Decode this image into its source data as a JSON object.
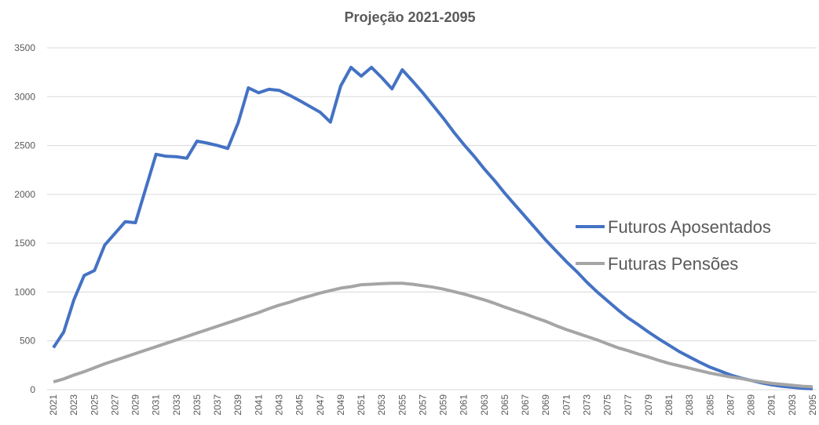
{
  "chart_data": {
    "type": "line",
    "title": "Projeção 2021-2095",
    "categories": [
      "2021",
      null,
      "2023",
      null,
      "2025",
      null,
      "2027",
      null,
      "2029",
      null,
      "2031",
      null,
      "2033",
      null,
      "2035",
      null,
      "2037",
      null,
      "2039",
      null,
      "2041",
      null,
      "2043",
      null,
      "2045",
      null,
      "2047",
      null,
      "2049",
      null,
      "2051",
      null,
      "2053",
      null,
      "2055",
      null,
      "2057",
      null,
      "2059",
      null,
      "2061",
      null,
      "2063",
      null,
      "2065",
      null,
      "2067",
      null,
      "2069",
      null,
      "2071",
      null,
      "2073",
      null,
      "2075",
      null,
      "2077",
      null,
      "2079",
      null,
      "2081",
      null,
      "2083",
      null,
      "2085",
      null,
      "2087",
      null,
      "2089",
      null,
      "2091",
      null,
      "2093",
      null,
      "2095"
    ],
    "series": [
      {
        "name": "Futuros Aposentados",
        "color": "#4472c4",
        "values": [
          430,
          590,
          920,
          1170,
          1220,
          1480,
          1600,
          1720,
          1710,
          2060,
          2410,
          2390,
          2385,
          2370,
          2545,
          2525,
          2500,
          2470,
          2730,
          3090,
          3040,
          3075,
          3065,
          3015,
          2960,
          2900,
          2840,
          2740,
          3110,
          3300,
          3210,
          3300,
          3195,
          3080,
          3275,
          3160,
          3040,
          2910,
          2780,
          2640,
          2510,
          2390,
          2260,
          2140,
          2010,
          1890,
          1770,
          1650,
          1530,
          1420,
          1310,
          1210,
          1100,
          1000,
          910,
          820,
          735,
          665,
          590,
          520,
          455,
          390,
          335,
          280,
          230,
          190,
          150,
          120,
          95,
          70,
          50,
          35,
          25,
          15,
          10
        ]
      },
      {
        "name": "Futuras Pensões",
        "color": "#a5a5a5",
        "values": [
          80,
          110,
          150,
          185,
          225,
          265,
          300,
          335,
          370,
          405,
          440,
          475,
          510,
          545,
          580,
          615,
          650,
          685,
          720,
          755,
          790,
          830,
          865,
          895,
          930,
          960,
          990,
          1015,
          1040,
          1055,
          1075,
          1080,
          1085,
          1090,
          1090,
          1080,
          1065,
          1050,
          1030,
          1005,
          980,
          950,
          920,
          885,
          845,
          810,
          775,
          735,
          700,
          655,
          615,
          580,
          545,
          510,
          470,
          430,
          400,
          365,
          335,
          300,
          270,
          245,
          220,
          195,
          170,
          150,
          130,
          115,
          95,
          80,
          65,
          55,
          45,
          35,
          30
        ]
      }
    ],
    "ylim": [
      0,
      3500
    ],
    "yticks": [
      0,
      500,
      1000,
      1500,
      2000,
      2500,
      3000,
      3500
    ],
    "grid": true,
    "legend": "right"
  }
}
